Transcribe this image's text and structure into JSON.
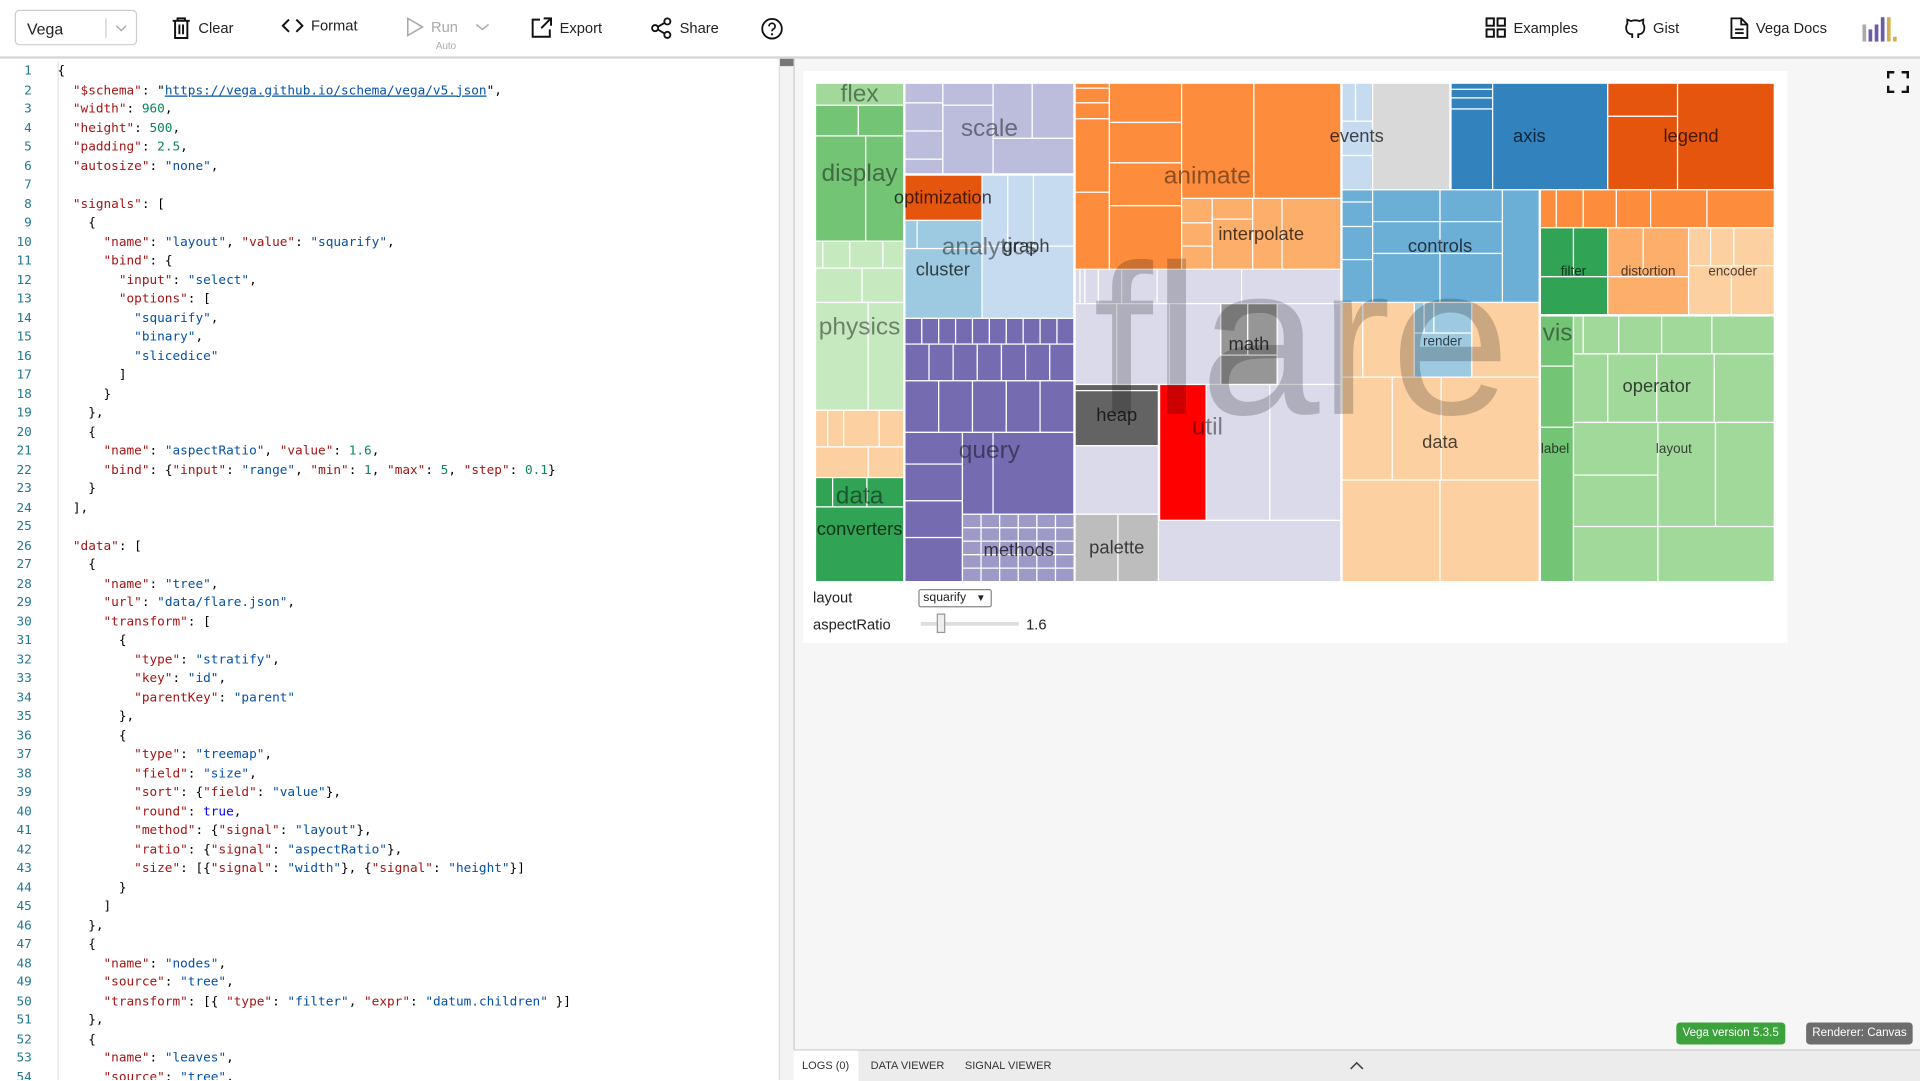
{
  "toolbar": {
    "mode": "Vega",
    "clear": "Clear",
    "format": "Format",
    "run": "Run",
    "run_sub": "Auto",
    "export": "Export",
    "share": "Share",
    "examples": "Examples",
    "gist": "Gist",
    "docs": "Vega Docs"
  },
  "editor": {
    "lines": [
      "{",
      "  \"$schema\": \"https://vega.github.io/schema/vega/v5.json\",",
      "  \"width\": 960,",
      "  \"height\": 500,",
      "  \"padding\": 2.5,",
      "  \"autosize\": \"none\",",
      "",
      "  \"signals\": [",
      "    {",
      "      \"name\": \"layout\", \"value\": \"squarify\",",
      "      \"bind\": {",
      "        \"input\": \"select\",",
      "        \"options\": [",
      "          \"squarify\",",
      "          \"binary\",",
      "          \"slicedice\"",
      "        ]",
      "      }",
      "    },",
      "    {",
      "      \"name\": \"aspectRatio\", \"value\": 1.6,",
      "      \"bind\": {\"input\": \"range\", \"min\": 1, \"max\": 5, \"step\": 0.1}",
      "    }",
      "  ],",
      "",
      "  \"data\": [",
      "    {",
      "      \"name\": \"tree\",",
      "      \"url\": \"data/flare.json\",",
      "      \"transform\": [",
      "        {",
      "          \"type\": \"stratify\",",
      "          \"key\": \"id\",",
      "          \"parentKey\": \"parent\"",
      "        },",
      "        {",
      "          \"type\": \"treemap\",",
      "          \"field\": \"size\",",
      "          \"sort\": {\"field\": \"value\"},",
      "          \"round\": true,",
      "          \"method\": {\"signal\": \"layout\"},",
      "          \"ratio\": {\"signal\": \"aspectRatio\"},",
      "          \"size\": [{\"signal\": \"width\"}, {\"signal\": \"height\"}]",
      "        }",
      "      ]",
      "    },",
      "    {",
      "      \"name\": \"nodes\",",
      "      \"source\": \"tree\",",
      "      \"transform\": [{ \"type\": \"filter\", \"expr\": \"datum.children\" }]",
      "    },",
      "    {",
      "      \"name\": \"leaves\",",
      "      \"source\": \"tree\","
    ]
  },
  "visualization": {
    "watermark": "flare",
    "labels": [
      "flex",
      "display",
      "physics",
      "data",
      "converters",
      "scale",
      "optimization",
      "analytics",
      "cluster",
      "graph",
      "query",
      "methods",
      "animate",
      "interpolate",
      "heap",
      "util",
      "math",
      "palette",
      "events",
      "axis",
      "legend",
      "controls",
      "render",
      "data",
      "filter",
      "distortion",
      "encoder",
      "vis",
      "operator",
      "label",
      "layout"
    ],
    "controls": {
      "layout_label": "layout",
      "layout_value": "squarify",
      "ratio_label": "aspectRatio",
      "ratio_value": "1.6",
      "ratio_min": 1,
      "ratio_max": 5
    }
  },
  "status": {
    "version": "Vega version 5.3.5",
    "renderer": "Renderer: Canvas",
    "version_color": "#3ca33c",
    "renderer_color": "#6d6d6d"
  },
  "footer": {
    "tabs": [
      "LOGS (0)",
      "DATA VIEWER",
      "SIGNAL VIEWER"
    ]
  }
}
